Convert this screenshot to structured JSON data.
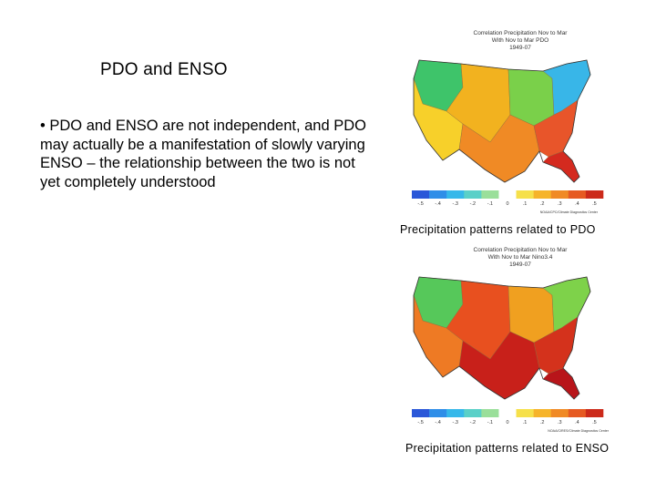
{
  "slide": {
    "title": "PDO and ENSO",
    "bullet": "• PDO and ENSO are not independent, and PDO may actually be a manifestation of slowly varying ENSO – the relationship between the two is not yet completely understood"
  },
  "maps": [
    {
      "title_lines": [
        "Correlation Precipitation Nov to Mar",
        "With Nov to Mar PDO",
        "1949-07"
      ],
      "scale_labels": [
        "-.5",
        "-.4",
        "-.3",
        "-.2",
        "-.1",
        "0",
        ".1",
        ".2",
        ".3",
        ".4",
        ".5"
      ],
      "credit": "NOAA/CPC/Climate Diagnostics Center",
      "caption": "Precipitation patterns related to PDO",
      "colors": {
        "west": "#f7d02a",
        "northwest": "#3ec46a",
        "plains": "#f2b21f",
        "midwest": "#7ad04a",
        "northeast": "#38b6e8",
        "southeast": "#e8552a",
        "south": "#f08a25",
        "florida": "#d42a1f"
      }
    },
    {
      "title_lines": [
        "Correlation Precipitation Nov to Mar",
        "With Nov to Mar Nino3.4",
        "1949-07"
      ],
      "scale_labels": [
        "-.5",
        "-.4",
        "-.3",
        "-.2",
        "-.1",
        "0",
        ".1",
        ".2",
        ".3",
        ".4",
        ".5"
      ],
      "credit": "NOAA/CIRES/Climate Diagnostics Center",
      "caption": "Precipitation patterns related to ENSO",
      "colors": {
        "west": "#ee7a24",
        "northwest": "#56c85a",
        "plains": "#e8501f",
        "midwest": "#f0a020",
        "northeast": "#7ed24a",
        "southeast": "#d4321c",
        "south": "#c8201a",
        "florida": "#b8151a"
      }
    }
  ],
  "scale_colors": [
    "#2a57d8",
    "#2f8ee8",
    "#36b8ea",
    "#5ad0c8",
    "#9adf9a",
    "#ffffff",
    "#f6e04a",
    "#f6b42a",
    "#f08a25",
    "#e65a22",
    "#cc2a1a"
  ]
}
